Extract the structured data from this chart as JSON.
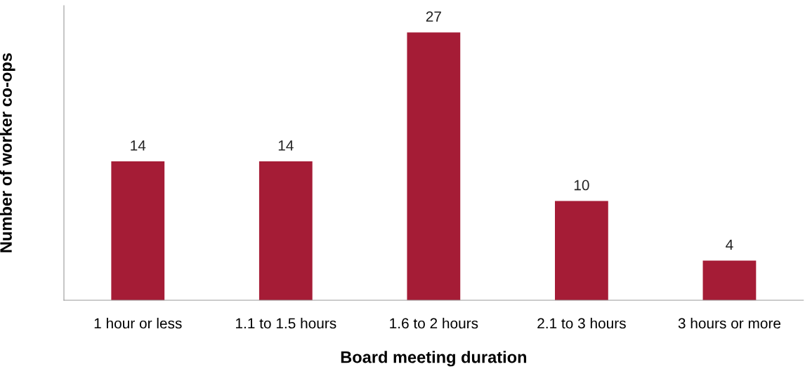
{
  "chart_data": {
    "type": "bar",
    "xlabel": "Board meeting duration",
    "ylabel": "Number of worker co-ops",
    "categories": [
      "1 hour or less",
      "1.1 to 1.5 hours",
      "1.6 to 2 hours",
      "2.1 to 3 hours",
      "3 hours or more"
    ],
    "values": [
      14,
      14,
      27,
      10,
      4
    ],
    "color": "#a51c36",
    "data_labels": true,
    "grid": false,
    "legend": false,
    "tick_labels": "x"
  }
}
